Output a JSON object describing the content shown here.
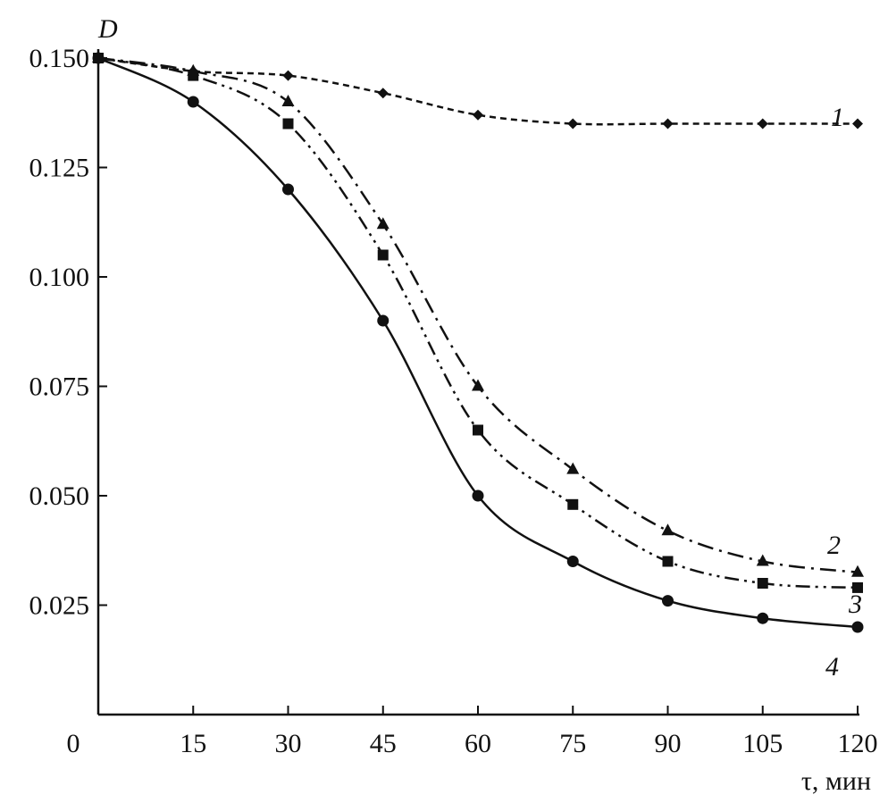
{
  "chart_data": {
    "type": "line",
    "title": "",
    "xlabel": "τ, мин",
    "ylabel": "D",
    "xlim": [
      0,
      120
    ],
    "ylim": [
      0,
      0.15
    ],
    "x_origin_label": "0",
    "xticks": [
      "15",
      "30",
      "45",
      "60",
      "75",
      "90",
      "105",
      "120"
    ],
    "xtick_values": [
      15,
      30,
      45,
      60,
      75,
      90,
      105,
      120
    ],
    "yticks": [
      "0.025",
      "0.050",
      "0.075",
      "0.100",
      "0.125",
      "0.150"
    ],
    "ytick_values": [
      0.025,
      0.05,
      0.075,
      0.1,
      0.125,
      0.15
    ],
    "grid": false,
    "x": [
      0,
      15,
      30,
      45,
      60,
      75,
      90,
      105,
      120
    ],
    "series": [
      {
        "name": "1",
        "marker": "diamond",
        "line": "dashed",
        "values": [
          0.15,
          0.147,
          0.146,
          0.142,
          0.137,
          0.135,
          0.135,
          0.135,
          0.135
        ]
      },
      {
        "name": "2",
        "marker": "triangle",
        "line": "dash-dot",
        "values": [
          0.15,
          0.147,
          0.14,
          0.112,
          0.075,
          0.056,
          0.042,
          0.035,
          0.0325
        ]
      },
      {
        "name": "3",
        "marker": "square",
        "line": "dash-dot-dot",
        "values": [
          0.15,
          0.146,
          0.135,
          0.105,
          0.065,
          0.048,
          0.035,
          0.03,
          0.029
        ]
      },
      {
        "name": "4",
        "marker": "circle",
        "line": "solid",
        "values": [
          0.15,
          0.14,
          0.12,
          0.09,
          0.05,
          0.035,
          0.026,
          0.022,
          0.02
        ]
      }
    ]
  }
}
